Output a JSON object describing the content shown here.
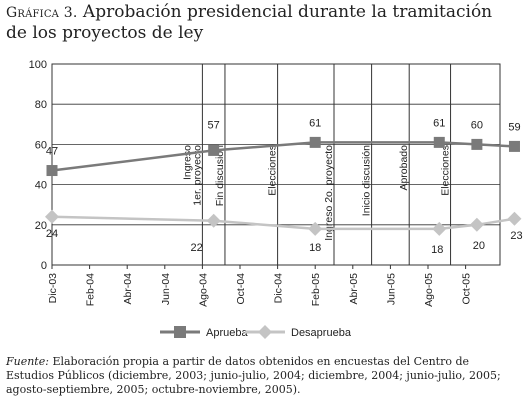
{
  "figure": {
    "label": "Gráfica 3.",
    "title": "Aprobación presidencial durante la tramitación de los proyectos de ley"
  },
  "chart_data": {
    "type": "line",
    "categories": [
      "Dic-03",
      "Feb-04",
      "Abr-04",
      "Jun-04",
      "Ago-04",
      "Oct-04",
      "Dic-04",
      "Feb-05",
      "Abr-05",
      "Jun-05",
      "Ago-05",
      "Oct-05"
    ],
    "ylim": [
      0,
      100
    ],
    "yticks": [
      0,
      20,
      40,
      60,
      80,
      100
    ],
    "grid_y": true,
    "series": [
      {
        "name": "Aprueba",
        "color": "#7a7a7a",
        "marker": "square",
        "points": [
          {
            "x": 0,
            "y": 47,
            "label": "47"
          },
          {
            "x": 4.3,
            "y": 57,
            "label": "57"
          },
          {
            "x": 7,
            "y": 61,
            "label": "61"
          },
          {
            "x": 10.3,
            "y": 61,
            "label": "61"
          },
          {
            "x": 11.3,
            "y": 60,
            "label": "60"
          },
          {
            "x": 12.3,
            "y": 59,
            "label": "59"
          }
        ]
      },
      {
        "name": "Desaprueba",
        "color": "#c4c4c4",
        "marker": "diamond",
        "points": [
          {
            "x": 0,
            "y": 24,
            "label": "24"
          },
          {
            "x": 4.3,
            "y": 22,
            "label": "22"
          },
          {
            "x": 7,
            "y": 18,
            "label": "18"
          },
          {
            "x": 10.3,
            "y": 18,
            "label": "18"
          },
          {
            "x": 11.3,
            "y": 20,
            "label": "20"
          },
          {
            "x": 12.3,
            "y": 23,
            "label": "23"
          }
        ]
      }
    ],
    "annotations": [
      {
        "x": 4.0,
        "text": "Ingreso 1er. proyecto"
      },
      {
        "x": 4.6,
        "text": "Fin discusión"
      },
      {
        "x": 6.0,
        "text": "Elecciones"
      },
      {
        "x": 7.5,
        "text": "Ingreso 2o. proyecto"
      },
      {
        "x": 8.5,
        "text": "Inicio discusión"
      },
      {
        "x": 9.5,
        "text": "Aprobado"
      },
      {
        "x": 10.6,
        "text": "Elecciones"
      }
    ],
    "legend": {
      "placement": "bottom"
    }
  },
  "source": {
    "lead": "Fuente:",
    "text": "Elaboración propia a partir de datos obtenidos en encuestas del Centro de Estudios Públicos (diciembre, 2003; junio-julio, 2004; diciembre, 2004; junio-julio, 2005; agosto-septiembre, 2005; octubre-noviembre, 2005)."
  }
}
